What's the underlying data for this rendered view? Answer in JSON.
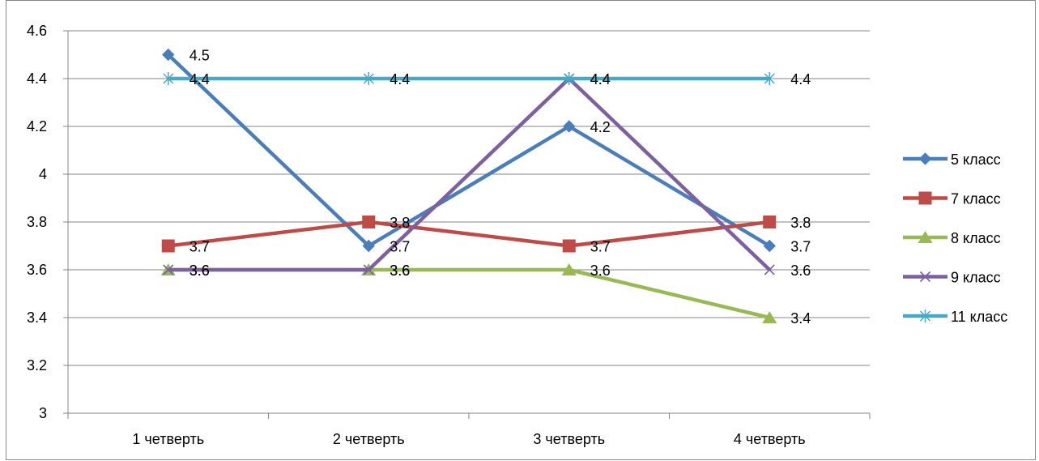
{
  "chart_data": {
    "type": "line",
    "title": "",
    "xlabel": "",
    "ylabel": "",
    "categories": [
      "1 четверть",
      "2 четверть",
      "3 четверть",
      "4 четверть"
    ],
    "ylim": [
      3,
      4.6
    ],
    "y_ticks": [
      3,
      3.2,
      3.4,
      3.6,
      3.8,
      4,
      4.2,
      4.4,
      4.6
    ],
    "y_tick_labels": [
      "3",
      "3.2",
      "3.4",
      "3.6",
      "3.8",
      "4",
      "4.2",
      "4.4",
      "4.6"
    ],
    "grid": "horizontal",
    "legend_position": "right",
    "series": [
      {
        "name": "5 класс",
        "values": [
          4.5,
          3.7,
          4.2,
          3.7
        ],
        "labels": [
          "4.5",
          "3.7",
          "4.2",
          "3.7"
        ],
        "color": "#4a7ebb",
        "marker": "diamond"
      },
      {
        "name": "7 класс",
        "values": [
          3.7,
          3.8,
          3.7,
          3.8
        ],
        "labels": [
          "3.7",
          "3.8",
          "3.7",
          "3.8"
        ],
        "color": "#be4b48",
        "marker": "square"
      },
      {
        "name": "8 класс",
        "values": [
          3.6,
          3.6,
          3.6,
          3.4
        ],
        "labels": [
          "3.6",
          "3.6",
          "3.6",
          "3.4"
        ],
        "color": "#98b954",
        "marker": "triangle"
      },
      {
        "name": "9 класс",
        "values": [
          3.6,
          3.6,
          4.4,
          3.6
        ],
        "labels": [
          "3.6",
          "3.6",
          "4.4",
          "3.6"
        ],
        "color": "#7d60a0",
        "marker": "x"
      },
      {
        "name": "11 класс",
        "values": [
          4.4,
          4.4,
          4.4,
          4.4
        ],
        "labels": [
          "4.4",
          "4.4",
          "4.4",
          "4.4"
        ],
        "color": "#46aac5",
        "marker": "star"
      }
    ]
  }
}
